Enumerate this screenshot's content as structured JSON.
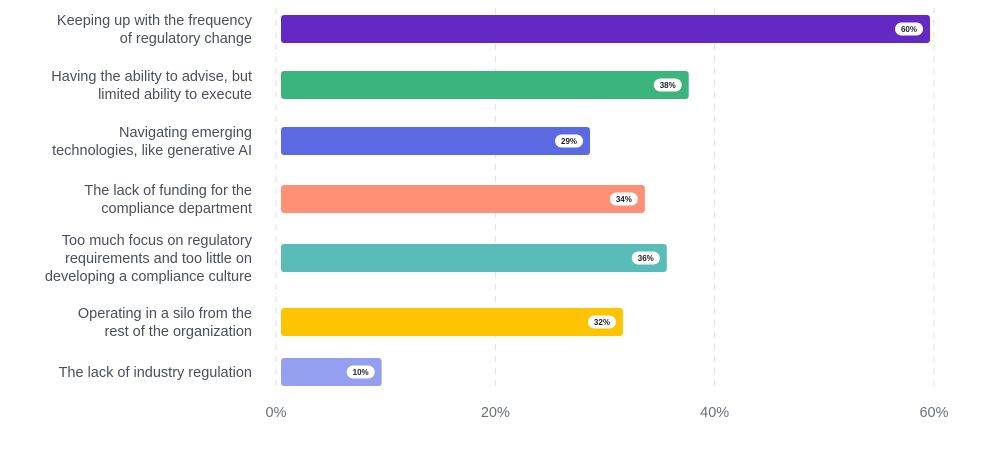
{
  "chart_data": {
    "type": "bar",
    "orientation": "horizontal",
    "categories": [
      [
        "Keeping up with the frequency",
        "of regulatory change"
      ],
      [
        "Having the ability to advise, but",
        "limited ability to execute"
      ],
      [
        "Navigating emerging",
        "technologies, like generative AI"
      ],
      [
        "The lack of funding for the",
        "compliance department"
      ],
      [
        "Too much focus on regulatory",
        "requirements and too little on",
        "developing a compliance culture"
      ],
      [
        "Operating in a silo from the",
        "rest of the organization"
      ],
      [
        "The lack of industry regulation"
      ]
    ],
    "values": [
      60,
      38,
      29,
      34,
      36,
      32,
      10
    ],
    "value_labels": [
      "60%",
      "38%",
      "29%",
      "34%",
      "36%",
      "32%",
      "10%"
    ],
    "colors": [
      "#6429c4",
      "#3bb47e",
      "#5b6ae3",
      "#ff8f75",
      "#59bcb8",
      "#ffc400",
      "#959ff0"
    ],
    "x_ticks": [
      0,
      20,
      40,
      60
    ],
    "x_tick_labels": [
      "0%",
      "20%",
      "40%",
      "60%"
    ],
    "xlim": [
      0,
      60
    ],
    "grid": "vertical-dashed",
    "title": "",
    "xlabel": "",
    "ylabel": ""
  }
}
